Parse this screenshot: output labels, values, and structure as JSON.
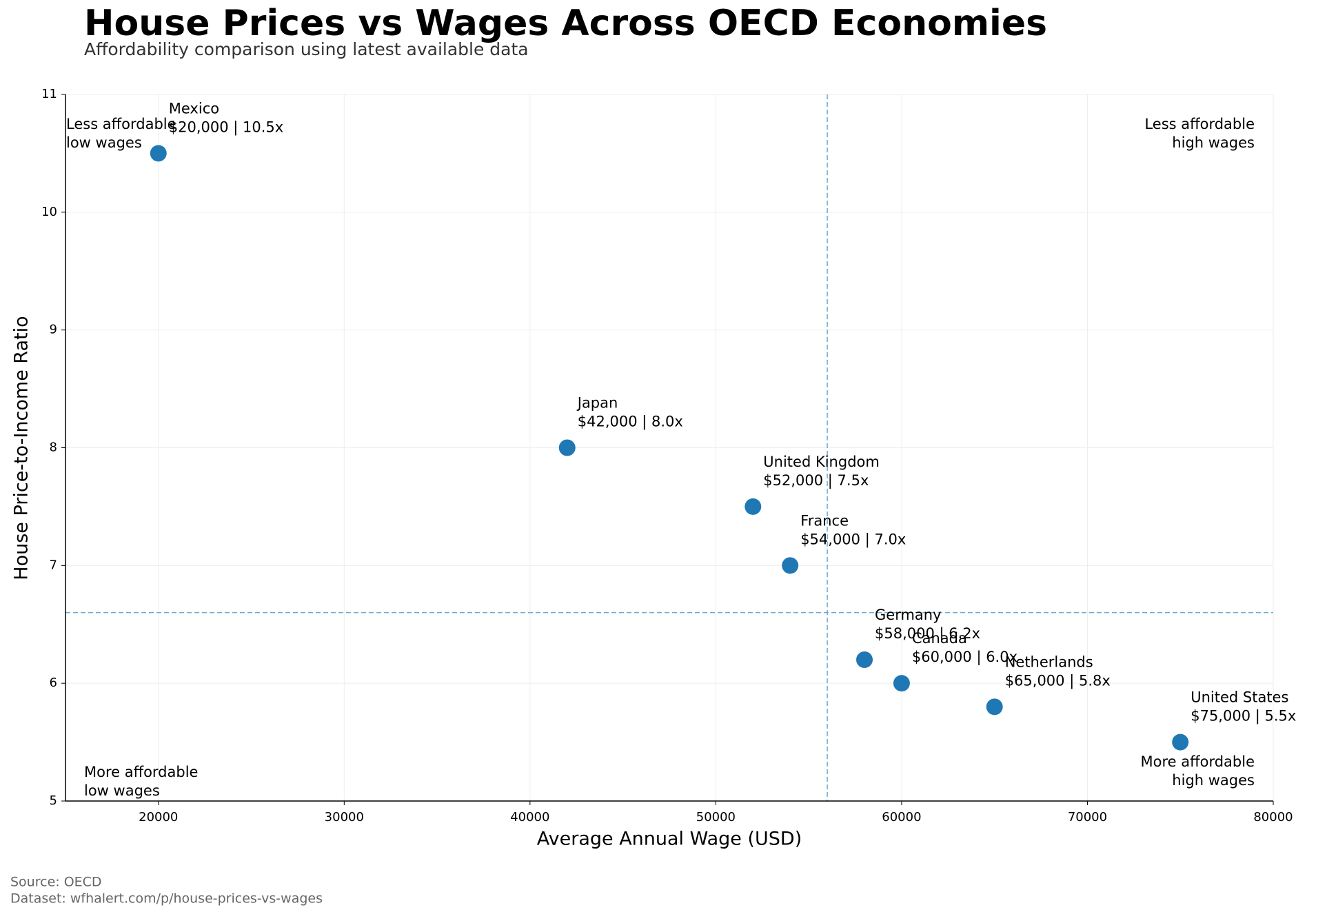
{
  "chart_data": {
    "type": "scatter",
    "title": "House Prices vs Wages Across OECD Economies",
    "subtitle": "Affordability comparison using latest available data",
    "x_label": "Average Annual Wage (USD)",
    "y_label": "House Price-to-Income Ratio",
    "labels": [
      "Mexico",
      "Japan",
      "United Kingdom",
      "France",
      "Germany",
      "Canada",
      "Netherlands",
      "United States"
    ],
    "x": [
      20000,
      42000,
      52000,
      54000,
      58000,
      60000,
      65000,
      75000
    ],
    "values": [
      10.5,
      8.0,
      7.5,
      7.0,
      6.2,
      6.0,
      5.8,
      5.5
    ],
    "value_labels": [
      "$20,000 | 10.5x",
      "$42,000 | 8.0x",
      "$52,000 | 7.5x",
      "$54,000 | 7.0x",
      "$58,000 | 6.2x",
      "$60,000 | 6.0x",
      "$65,000 | 5.8x",
      "$75,000 | 5.5x"
    ],
    "color": "#1f77b4",
    "xlim": [
      15000,
      80000
    ],
    "ylim": [
      5,
      11
    ],
    "xticks": [
      20000,
      30000,
      40000,
      50000,
      60000,
      70000,
      80000
    ],
    "yticks": [
      5,
      6,
      7,
      8,
      9,
      10,
      11
    ],
    "grid": true,
    "ref_lines": {
      "x": 56000,
      "y": 6.6,
      "color": "#6fa8cc"
    },
    "quadrant_notes": [
      {
        "position": "top-left",
        "lines": [
          "Less affordable",
          "low wages"
        ]
      },
      {
        "position": "top-right",
        "lines": [
          "Less affordable",
          "high wages"
        ]
      },
      {
        "position": "bottom-left",
        "lines": [
          "More affordable",
          "low wages"
        ]
      },
      {
        "position": "bottom-right",
        "lines": [
          "More affordable",
          "high wages"
        ]
      }
    ],
    "footer": [
      "Source: OECD",
      "Dataset: wfhalert.com/p/house-prices-vs-wages"
    ]
  }
}
